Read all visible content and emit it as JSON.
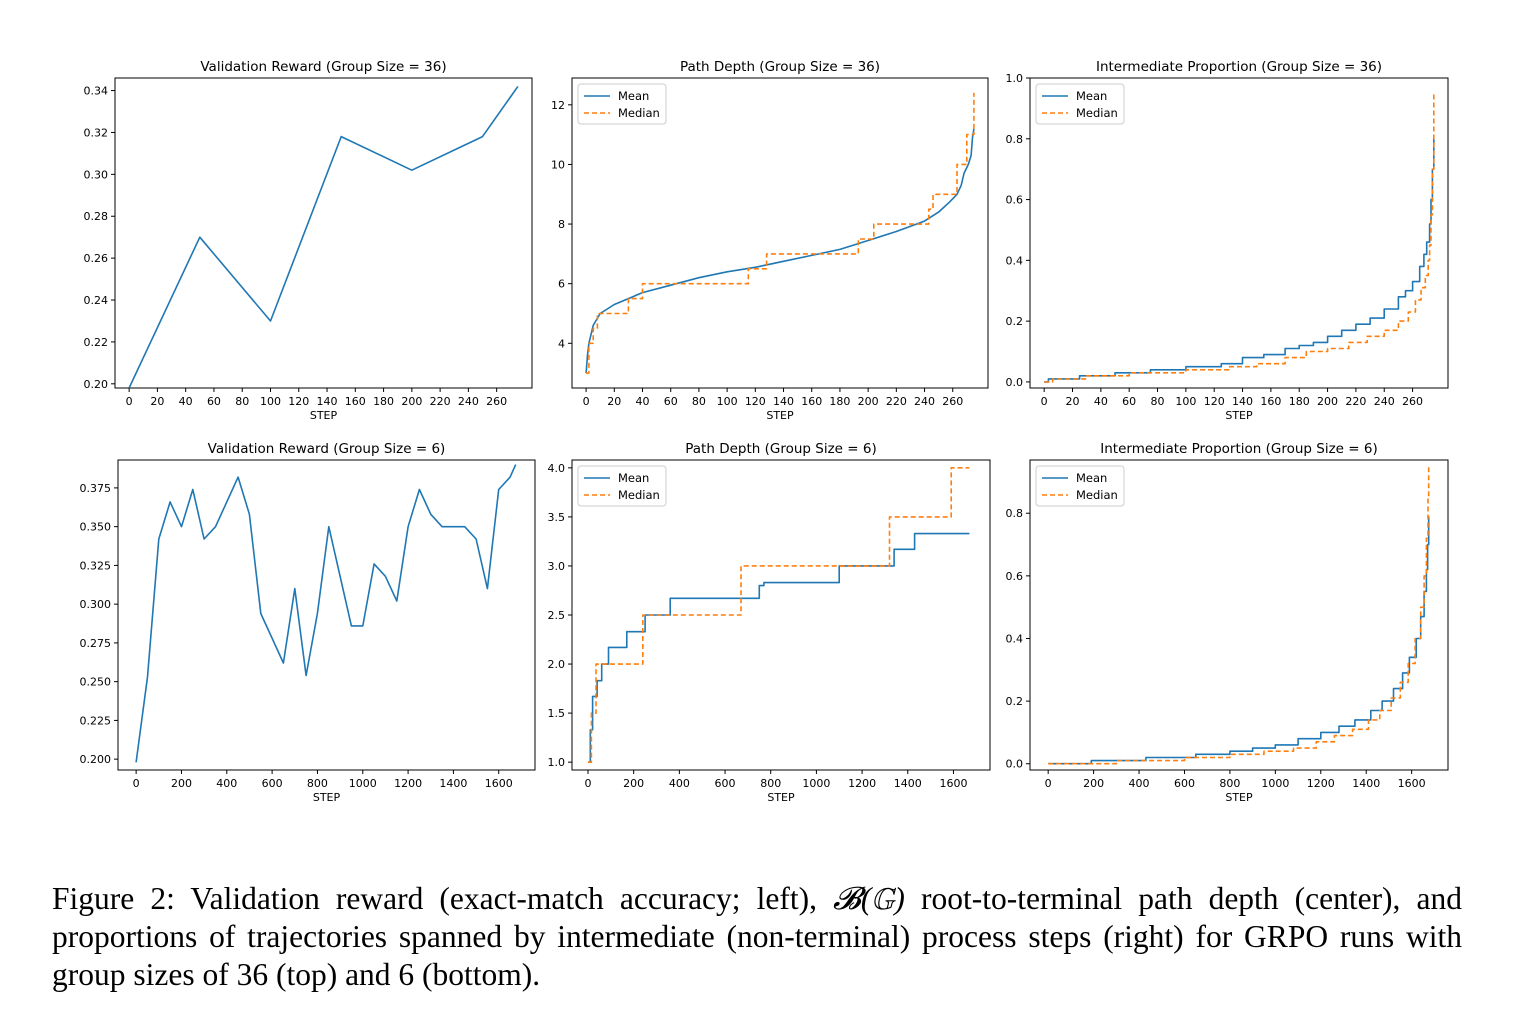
{
  "colors": {
    "mean": "#1f77b4",
    "median": "#ff7f0e",
    "axis": "#000000"
  },
  "chart_data": [
    {
      "type": "line",
      "title": "Validation Reward (Group Size = 36)",
      "xlabel": "STEP",
      "ylabel": "",
      "xlim": [
        -10,
        285
      ],
      "ylim": [
        0.198,
        0.346
      ],
      "xticks": [
        0,
        20,
        40,
        60,
        80,
        100,
        120,
        140,
        160,
        180,
        200,
        220,
        240,
        260
      ],
      "yticks": [
        0.2,
        0.22,
        0.24,
        0.26,
        0.28,
        0.3,
        0.32,
        0.34
      ],
      "ytick_labels": [
        "0.20",
        "0.22",
        "0.24",
        "0.26",
        "0.28",
        "0.30",
        "0.32",
        "0.34"
      ],
      "legend": null,
      "series": [
        {
          "name": "reward",
          "style": "solid",
          "color": "mean",
          "x": [
            0,
            50,
            100,
            150,
            200,
            250,
            275
          ],
          "y": [
            0.198,
            0.27,
            0.23,
            0.318,
            0.302,
            0.318,
            0.342
          ]
        }
      ]
    },
    {
      "type": "line",
      "title": "Path Depth (Group Size = 36)",
      "xlabel": "STEP",
      "ylabel": "",
      "xlim": [
        -10,
        285
      ],
      "ylim": [
        2.5,
        12.9
      ],
      "xticks": [
        0,
        20,
        40,
        60,
        80,
        100,
        120,
        140,
        160,
        180,
        200,
        220,
        240,
        260
      ],
      "yticks": [
        4,
        6,
        8,
        10,
        12
      ],
      "ytick_labels": [
        "4",
        "6",
        "8",
        "10",
        "12"
      ],
      "legend": {
        "position": "upper-left",
        "labels": [
          "Mean",
          "Median"
        ]
      },
      "series": [
        {
          "name": "Mean",
          "style": "solid",
          "color": "mean",
          "x": [
            0,
            1,
            2,
            5,
            10,
            20,
            30,
            40,
            60,
            80,
            100,
            120,
            140,
            160,
            180,
            200,
            220,
            240,
            250,
            258,
            263,
            266,
            268,
            271,
            273,
            274,
            275
          ],
          "y": [
            3.0,
            3.6,
            4.0,
            4.6,
            5.0,
            5.3,
            5.5,
            5.7,
            5.95,
            6.2,
            6.4,
            6.55,
            6.75,
            6.95,
            7.15,
            7.45,
            7.75,
            8.1,
            8.4,
            8.75,
            9.0,
            9.3,
            9.7,
            10.0,
            10.3,
            10.9,
            11.2
          ]
        },
        {
          "name": "Median",
          "style": "dashed",
          "color": "median",
          "step": true,
          "x": [
            0,
            2,
            5,
            8,
            30,
            40,
            115,
            128,
            193,
            204,
            243,
            246,
            263,
            270,
            275
          ],
          "y": [
            3.0,
            4.0,
            4.5,
            5.0,
            5.5,
            6.0,
            6.5,
            7.0,
            7.5,
            8.0,
            8.5,
            9.0,
            10.0,
            11.0,
            12.4
          ]
        }
      ]
    },
    {
      "type": "line",
      "title": "Intermediate Proportion (Group Size = 36)",
      "xlabel": "STEP",
      "ylabel": "",
      "xlim": [
        -10,
        285
      ],
      "ylim": [
        -0.02,
        1.0
      ],
      "xticks": [
        0,
        20,
        40,
        60,
        80,
        100,
        120,
        140,
        160,
        180,
        200,
        220,
        240,
        260
      ],
      "yticks": [
        0.0,
        0.2,
        0.4,
        0.6,
        0.8,
        1.0
      ],
      "ytick_labels": [
        "0.0",
        "0.2",
        "0.4",
        "0.6",
        "0.8",
        "1.0"
      ],
      "legend": {
        "position": "upper-left",
        "labels": [
          "Mean",
          "Median"
        ]
      },
      "series": [
        {
          "name": "Mean",
          "style": "solid",
          "color": "mean",
          "step": true,
          "x": [
            0,
            3,
            25,
            50,
            75,
            100,
            125,
            140,
            155,
            170,
            180,
            190,
            200,
            210,
            220,
            230,
            240,
            250,
            255,
            260,
            265,
            268,
            270,
            272,
            273,
            274,
            275
          ],
          "y": [
            0.0,
            0.01,
            0.02,
            0.03,
            0.04,
            0.05,
            0.06,
            0.08,
            0.09,
            0.11,
            0.12,
            0.13,
            0.15,
            0.17,
            0.19,
            0.21,
            0.24,
            0.28,
            0.3,
            0.33,
            0.38,
            0.42,
            0.46,
            0.52,
            0.6,
            0.7,
            0.8
          ]
        },
        {
          "name": "Median",
          "style": "dashed",
          "color": "median",
          "step": true,
          "x": [
            0,
            6,
            30,
            60,
            100,
            130,
            150,
            170,
            185,
            200,
            215,
            228,
            240,
            250,
            257,
            262,
            266,
            269,
            271,
            272,
            273,
            274,
            275
          ],
          "y": [
            0.0,
            0.01,
            0.02,
            0.03,
            0.04,
            0.05,
            0.06,
            0.08,
            0.1,
            0.11,
            0.13,
            0.15,
            0.17,
            0.2,
            0.23,
            0.27,
            0.31,
            0.35,
            0.4,
            0.45,
            0.55,
            0.7,
            0.95
          ]
        }
      ]
    },
    {
      "type": "line",
      "title": "Validation Reward (Group Size = 6)",
      "xlabel": "STEP",
      "ylabel": "",
      "xlim": [
        -80,
        1760
      ],
      "ylim": [
        0.193,
        0.393
      ],
      "xticks": [
        0,
        200,
        400,
        600,
        800,
        1000,
        1200,
        1400,
        1600
      ],
      "yticks": [
        0.2,
        0.225,
        0.25,
        0.275,
        0.3,
        0.325,
        0.35,
        0.375
      ],
      "ytick_labels": [
        "0.200",
        "0.225",
        "0.250",
        "0.275",
        "0.300",
        "0.325",
        "0.350",
        "0.375"
      ],
      "legend": null,
      "series": [
        {
          "name": "reward",
          "style": "solid",
          "color": "mean",
          "x": [
            0,
            50,
            100,
            150,
            200,
            250,
            300,
            350,
            450,
            500,
            550,
            650,
            700,
            750,
            800,
            850,
            950,
            1000,
            1050,
            1100,
            1150,
            1200,
            1250,
            1300,
            1350,
            1450,
            1500,
            1550,
            1600,
            1650,
            1675
          ],
          "y": [
            0.198,
            0.253,
            0.342,
            0.366,
            0.35,
            0.374,
            0.342,
            0.35,
            0.382,
            0.358,
            0.294,
            0.262,
            0.31,
            0.254,
            0.294,
            0.35,
            0.286,
            0.286,
            0.326,
            0.318,
            0.302,
            0.35,
            0.374,
            0.358,
            0.35,
            0.35,
            0.342,
            0.31,
            0.374,
            0.382,
            0.39
          ]
        }
      ]
    },
    {
      "type": "line",
      "title": "Path Depth (Group Size = 6)",
      "xlabel": "STEP",
      "ylabel": "",
      "xlim": [
        -70,
        1760
      ],
      "ylim": [
        0.92,
        4.08
      ],
      "xticks": [
        0,
        200,
        400,
        600,
        800,
        1000,
        1200,
        1400,
        1600
      ],
      "yticks": [
        1.0,
        1.5,
        2.0,
        2.5,
        3.0,
        3.5,
        4.0
      ],
      "ytick_labels": [
        "1.0",
        "1.5",
        "2.0",
        "2.5",
        "3.0",
        "3.5",
        "4.0"
      ],
      "legend": {
        "position": "upper-left",
        "labels": [
          "Mean",
          "Median"
        ]
      },
      "series": [
        {
          "name": "Mean",
          "style": "solid",
          "color": "mean",
          "step": true,
          "x": [
            0,
            10,
            20,
            40,
            60,
            90,
            170,
            250,
            360,
            750,
            770,
            1100,
            1340,
            1430,
            1670
          ],
          "y": [
            1.0,
            1.33,
            1.67,
            1.83,
            2.0,
            2.17,
            2.33,
            2.5,
            2.67,
            2.8,
            2.83,
            3.0,
            3.17,
            3.33,
            3.33
          ]
        },
        {
          "name": "Median",
          "style": "dashed",
          "color": "median",
          "step": true,
          "x": [
            0,
            15,
            35,
            240,
            670,
            1320,
            1590,
            1670
          ],
          "y": [
            1.0,
            1.5,
            2.0,
            2.5,
            3.0,
            3.5,
            4.0,
            4.0
          ]
        }
      ]
    },
    {
      "type": "line",
      "title": "Intermediate Proportion (Group Size = 6)",
      "xlabel": "STEP",
      "ylabel": "",
      "xlim": [
        -80,
        1760
      ],
      "ylim": [
        -0.02,
        0.97
      ],
      "xticks": [
        0,
        200,
        400,
        600,
        800,
        1000,
        1200,
        1400,
        1600
      ],
      "yticks": [
        0.0,
        0.2,
        0.4,
        0.6,
        0.8
      ],
      "ytick_labels": [
        "0.0",
        "0.2",
        "0.4",
        "0.6",
        "0.8"
      ],
      "legend": {
        "position": "upper-left",
        "labels": [
          "Mean",
          "Median"
        ]
      },
      "series": [
        {
          "name": "Mean",
          "style": "solid",
          "color": "mean",
          "step": true,
          "x": [
            0,
            190,
            430,
            650,
            800,
            900,
            1000,
            1100,
            1200,
            1280,
            1350,
            1420,
            1470,
            1520,
            1560,
            1590,
            1620,
            1640,
            1655,
            1665,
            1670,
            1675
          ],
          "y": [
            0.0,
            0.01,
            0.02,
            0.03,
            0.04,
            0.05,
            0.06,
            0.08,
            0.1,
            0.12,
            0.14,
            0.17,
            0.2,
            0.24,
            0.29,
            0.34,
            0.4,
            0.47,
            0.55,
            0.62,
            0.7,
            0.79
          ]
        },
        {
          "name": "Median",
          "style": "dashed",
          "color": "median",
          "step": true,
          "x": [
            0,
            300,
            600,
            800,
            950,
            1080,
            1180,
            1260,
            1340,
            1410,
            1460,
            1510,
            1550,
            1585,
            1615,
            1640,
            1655,
            1665,
            1672,
            1675
          ],
          "y": [
            0.0,
            0.01,
            0.02,
            0.03,
            0.04,
            0.05,
            0.07,
            0.09,
            0.11,
            0.14,
            0.17,
            0.21,
            0.26,
            0.32,
            0.4,
            0.5,
            0.6,
            0.72,
            0.85,
            0.95
          ]
        }
      ]
    }
  ],
  "caption": {
    "label": "Figure 2:",
    "text_1": " Validation reward (exact-match accuracy; left), ",
    "math": "𝓑(𝔾)",
    "text_2": " root-to-terminal path depth (center), and proportions of trajectories spanned by intermediate (non-terminal) process steps (right) for GRPO runs with group sizes of 36 (top) and 6 (bottom)."
  }
}
